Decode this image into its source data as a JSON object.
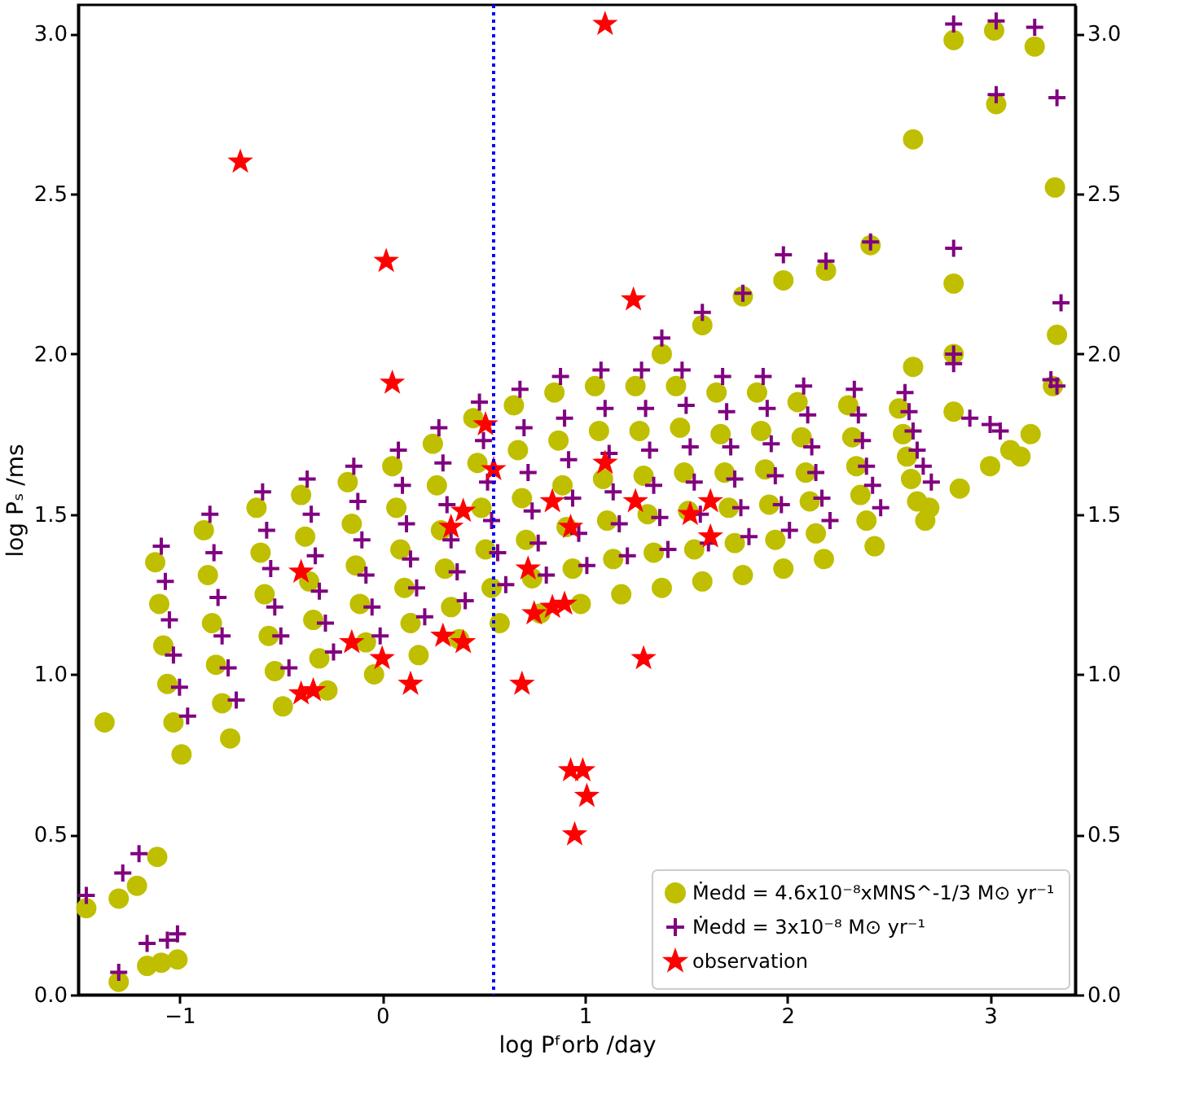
{
  "chart_data": {
    "type": "scatter",
    "xlabel": "log Pᶠorb /day",
    "ylabel": "log Pₛ /ms",
    "xlim": [
      -1.5,
      3.42
    ],
    "ylim": [
      0,
      3.09
    ],
    "y2lim": [
      0,
      3.09
    ],
    "xticks": [
      {
        "value": -1,
        "label": "−1"
      },
      0,
      1,
      2,
      3
    ],
    "yticks": [
      {
        "value": 0,
        "label": "0.0"
      },
      0.5,
      {
        "value": 1,
        "label": "1.0"
      },
      1.5,
      {
        "value": 2,
        "label": "2.0"
      },
      2.5,
      {
        "value": 3,
        "label": "3.0"
      }
    ],
    "y2ticks": [
      {
        "value": 0,
        "label": "0.0"
      },
      0.5,
      {
        "value": 1,
        "label": "1.0"
      },
      1.5,
      {
        "value": 2,
        "label": "2.0"
      },
      2.5,
      {
        "value": 3,
        "label": "3.0"
      }
    ],
    "grid": false,
    "legend": "bottom right",
    "ref_lines": [
      {
        "axis": "x",
        "value": 0.55,
        "color": "#0000ff",
        "line_style": "dotted"
      }
    ],
    "series": [
      {
        "name": "Ṁedd = 4.6x10⁻⁸xMNS^-1/3 M⊙ yr⁻¹",
        "color": "#bfbf00",
        "marker": "circle",
        "x": [
          -1.12,
          -1.1,
          -1.08,
          -1.06,
          -1.03,
          -0.99,
          -0.88,
          -0.86,
          -0.84,
          -0.82,
          -0.79,
          -0.75,
          -0.62,
          -0.6,
          -0.58,
          -0.56,
          -0.53,
          -0.49,
          -0.4,
          -0.38,
          -0.36,
          -0.34,
          -0.31,
          -0.27,
          -0.17,
          -0.15,
          -0.13,
          -0.11,
          -0.08,
          -0.04,
          0.05,
          0.07,
          0.09,
          0.11,
          0.14,
          0.18,
          0.25,
          0.27,
          0.29,
          0.31,
          0.34,
          0.38,
          0.45,
          0.47,
          0.49,
          0.51,
          0.54,
          0.58,
          0.65,
          0.67,
          0.69,
          0.71,
          0.74,
          0.78,
          0.85,
          0.87,
          0.89,
          0.91,
          0.94,
          0.98,
          1.05,
          1.07,
          1.09,
          1.11,
          1.14,
          1.18,
          1.25,
          1.27,
          1.29,
          1.31,
          1.34,
          1.38,
          1.45,
          1.47,
          1.49,
          1.51,
          1.54,
          1.58,
          1.65,
          1.67,
          1.69,
          1.71,
          1.74,
          1.78,
          1.85,
          1.87,
          1.89,
          1.91,
          1.94,
          1.98,
          2.05,
          2.07,
          2.09,
          2.11,
          2.14,
          2.18,
          2.3,
          2.32,
          2.34,
          2.36,
          2.39,
          2.43,
          2.55,
          2.57,
          2.59,
          2.61,
          2.64,
          2.68,
          2.7,
          2.85,
          3.0,
          3.1,
          3.2,
          3.15,
          -1.37,
          -1.46,
          -1.3,
          -1.21,
          -1.11,
          -1.3,
          -1.16,
          -1.09,
          -1.01,
          1.38,
          1.58,
          1.78,
          1.98,
          2.19,
          2.41,
          2.62,
          2.82,
          2.82,
          3.03,
          3.02,
          3.22,
          3.32,
          3.33,
          3.31,
          2.62,
          2.82,
          2.82
        ],
        "values": [
          1.35,
          1.22,
          1.09,
          0.97,
          0.85,
          0.75,
          1.45,
          1.31,
          1.16,
          1.03,
          0.91,
          0.8,
          1.52,
          1.38,
          1.25,
          1.12,
          1.01,
          0.9,
          1.56,
          1.43,
          1.29,
          1.17,
          1.05,
          0.95,
          1.6,
          1.47,
          1.34,
          1.22,
          1.1,
          1.0,
          1.65,
          1.52,
          1.39,
          1.27,
          1.16,
          1.06,
          1.72,
          1.59,
          1.45,
          1.33,
          1.21,
          1.11,
          1.8,
          1.66,
          1.52,
          1.39,
          1.27,
          1.16,
          1.84,
          1.7,
          1.55,
          1.42,
          1.3,
          1.19,
          1.88,
          1.73,
          1.59,
          1.46,
          1.33,
          1.22,
          1.9,
          1.76,
          1.61,
          1.48,
          1.36,
          1.25,
          1.9,
          1.76,
          1.62,
          1.5,
          1.38,
          1.27,
          1.9,
          1.77,
          1.63,
          1.51,
          1.39,
          1.29,
          1.88,
          1.75,
          1.63,
          1.52,
          1.41,
          1.31,
          1.88,
          1.76,
          1.64,
          1.53,
          1.42,
          1.33,
          1.85,
          1.74,
          1.63,
          1.54,
          1.44,
          1.36,
          1.84,
          1.74,
          1.65,
          1.56,
          1.48,
          1.4,
          1.83,
          1.75,
          1.68,
          1.61,
          1.54,
          1.48,
          1.52,
          1.58,
          1.65,
          1.7,
          1.75,
          1.68,
          0.85,
          0.27,
          0.3,
          0.34,
          0.43,
          0.04,
          0.09,
          0.1,
          0.11,
          2.0,
          2.09,
          2.18,
          2.23,
          2.26,
          2.34,
          2.67,
          2.98,
          2.22,
          2.78,
          3.01,
          2.96,
          2.52,
          2.06,
          1.9,
          1.96,
          2.0,
          1.82
        ]
      },
      {
        "name": "Ṁedd = 3x10⁻⁸ M⊙ yr⁻¹",
        "color": "#800080",
        "marker": "cross",
        "x": [
          -1.09,
          -1.07,
          -1.05,
          -1.03,
          -1.0,
          -0.96,
          -0.85,
          -0.83,
          -0.81,
          -0.79,
          -0.76,
          -0.72,
          -0.59,
          -0.57,
          -0.55,
          -0.53,
          -0.5,
          -0.46,
          -0.37,
          -0.35,
          -0.33,
          -0.31,
          -0.28,
          -0.24,
          -0.14,
          -0.12,
          -0.1,
          -0.08,
          -0.05,
          -0.01,
          0.08,
          0.1,
          0.12,
          0.14,
          0.17,
          0.21,
          0.28,
          0.3,
          0.32,
          0.34,
          0.37,
          0.41,
          0.48,
          0.5,
          0.52,
          0.54,
          0.57,
          0.61,
          0.68,
          0.7,
          0.72,
          0.74,
          0.77,
          0.81,
          0.88,
          0.9,
          0.92,
          0.94,
          0.97,
          1.01,
          1.08,
          1.1,
          1.12,
          1.14,
          1.17,
          1.21,
          1.28,
          1.3,
          1.32,
          1.34,
          1.37,
          1.41,
          1.48,
          1.5,
          1.52,
          1.54,
          1.57,
          1.61,
          1.68,
          1.7,
          1.72,
          1.74,
          1.77,
          1.81,
          1.88,
          1.9,
          1.92,
          1.94,
          1.97,
          2.01,
          2.08,
          2.1,
          2.12,
          2.14,
          2.17,
          2.21,
          2.33,
          2.35,
          2.37,
          2.39,
          2.42,
          2.46,
          2.58,
          2.6,
          2.62,
          2.64,
          2.67,
          2.71,
          -1.46,
          -1.3,
          -1.16,
          -1.06,
          -1.01,
          -1.28,
          -1.2,
          1.38,
          1.58,
          1.78,
          1.98,
          2.19,
          2.41,
          2.82,
          3.03,
          3.22,
          3.03,
          3.33,
          2.82,
          3.35,
          2.82,
          2.82,
          3.3,
          3.33,
          2.9,
          3.0,
          3.05
        ],
        "values": [
          1.4,
          1.29,
          1.17,
          1.06,
          0.96,
          0.87,
          1.5,
          1.38,
          1.24,
          1.12,
          1.02,
          0.92,
          1.57,
          1.45,
          1.33,
          1.21,
          1.12,
          1.02,
          1.61,
          1.5,
          1.37,
          1.26,
          1.16,
          1.07,
          1.65,
          1.54,
          1.42,
          1.31,
          1.21,
          1.12,
          1.7,
          1.59,
          1.47,
          1.36,
          1.27,
          1.18,
          1.77,
          1.66,
          1.53,
          1.42,
          1.32,
          1.23,
          1.85,
          1.73,
          1.6,
          1.48,
          1.38,
          1.28,
          1.89,
          1.77,
          1.63,
          1.51,
          1.41,
          1.31,
          1.93,
          1.8,
          1.67,
          1.55,
          1.44,
          1.34,
          1.95,
          1.83,
          1.69,
          1.57,
          1.47,
          1.37,
          1.95,
          1.83,
          1.7,
          1.59,
          1.49,
          1.39,
          1.95,
          1.84,
          1.71,
          1.6,
          1.5,
          1.41,
          1.93,
          1.82,
          1.71,
          1.61,
          1.52,
          1.43,
          1.93,
          1.83,
          1.72,
          1.62,
          1.53,
          1.45,
          1.9,
          1.81,
          1.71,
          1.63,
          1.55,
          1.48,
          1.89,
          1.81,
          1.73,
          1.65,
          1.59,
          1.52,
          1.88,
          1.82,
          1.76,
          1.7,
          1.65,
          1.6,
          0.31,
          0.07,
          0.16,
          0.17,
          0.19,
          0.38,
          0.44,
          2.05,
          2.13,
          2.19,
          2.31,
          2.29,
          2.35,
          3.03,
          3.04,
          3.02,
          2.81,
          2.8,
          2.33,
          2.16,
          2.0,
          1.97,
          1.92,
          1.9,
          1.8,
          1.78,
          1.76
        ]
      },
      {
        "name": "observation",
        "color": "#ff0000",
        "marker": "star",
        "x": [
          -0.7,
          0.02,
          0.05,
          1.1,
          1.24,
          -0.4,
          -0.15,
          0.0,
          0.14,
          -0.4,
          -0.34,
          0.3,
          0.34,
          0.4,
          0.4,
          0.69,
          0.72,
          0.75,
          0.84,
          0.9,
          0.84,
          0.93,
          1.25,
          1.29,
          1.52,
          1.62,
          1.62,
          0.93,
          0.99,
          1.01,
          0.95,
          0.51,
          0.55,
          1.1
        ],
        "values": [
          2.6,
          2.29,
          1.91,
          3.03,
          2.17,
          1.32,
          1.1,
          1.05,
          0.97,
          0.94,
          0.95,
          1.12,
          1.46,
          1.51,
          1.1,
          0.97,
          1.33,
          1.19,
          1.21,
          1.22,
          1.54,
          1.46,
          1.54,
          1.05,
          1.5,
          1.54,
          1.43,
          0.7,
          0.7,
          0.62,
          0.5,
          1.78,
          1.64,
          1.66
        ]
      }
    ]
  }
}
